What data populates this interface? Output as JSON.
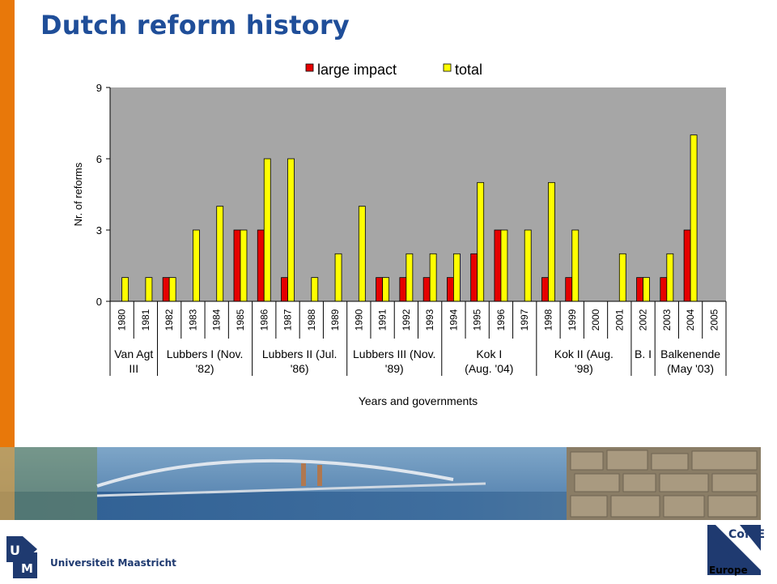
{
  "page": {
    "title": "Dutch reform history"
  },
  "branding": {
    "university": "Universiteit Maastricht",
    "um_letters": [
      "U",
      "M"
    ],
    "cof_name": "CofFEE",
    "cof_region": "Europe"
  },
  "colors": {
    "accent": "#e8780a",
    "title": "#1f4e99",
    "plot_bg": "#a6a6a6",
    "large_impact": "#e60000",
    "total": "#ffff00"
  },
  "chart_data": {
    "type": "bar",
    "title": "",
    "xlabel": "Years and governments",
    "ylabel": "Nr. of reforms",
    "ylim": [
      0,
      9
    ],
    "yticks": [
      0,
      3,
      6,
      9
    ],
    "grid": false,
    "legend": "top",
    "categories": [
      "1980",
      "1981",
      "1982",
      "1983",
      "1984",
      "1985",
      "1986",
      "1987",
      "1988",
      "1989",
      "1990",
      "1991",
      "1992",
      "1993",
      "1994",
      "1995",
      "1996",
      "1997",
      "1998",
      "1999",
      "2000",
      "2001",
      "2002",
      "2003",
      "2004",
      "2005"
    ],
    "series": [
      {
        "name": "large impact",
        "values": [
          0,
          0,
          1,
          0,
          0,
          3,
          3,
          1,
          0,
          0,
          0,
          1,
          1,
          1,
          1,
          2,
          3,
          0,
          1,
          1,
          0,
          0,
          1,
          1,
          3,
          0
        ]
      },
      {
        "name": "total",
        "values": [
          1,
          1,
          1,
          3,
          4,
          3,
          6,
          6,
          1,
          2,
          4,
          1,
          2,
          2,
          2,
          5,
          3,
          3,
          5,
          3,
          0,
          2,
          1,
          2,
          7,
          0
        ]
      }
    ],
    "governments": [
      {
        "lines": [
          "Van Agt",
          "III"
        ],
        "start": 0,
        "end": 1
      },
      {
        "lines": [
          "Lubbers I (Nov.",
          "'82)"
        ],
        "start": 2,
        "end": 5
      },
      {
        "lines": [
          "Lubbers II (Jul.",
          "'86)"
        ],
        "start": 6,
        "end": 9
      },
      {
        "lines": [
          "Lubbers III (Nov.",
          "'89)"
        ],
        "start": 10,
        "end": 13
      },
      {
        "lines": [
          "Kok I",
          "(Aug. '04)"
        ],
        "start": 14,
        "end": 17
      },
      {
        "lines": [
          "Kok II      (Aug.",
          "'98)"
        ],
        "start": 18,
        "end": 21
      },
      {
        "lines": [
          "B. I",
          ""
        ],
        "start": 22,
        "end": 22
      },
      {
        "lines": [
          "Balkenende",
          "(May '03)"
        ],
        "start": 23,
        "end": 25
      }
    ]
  }
}
